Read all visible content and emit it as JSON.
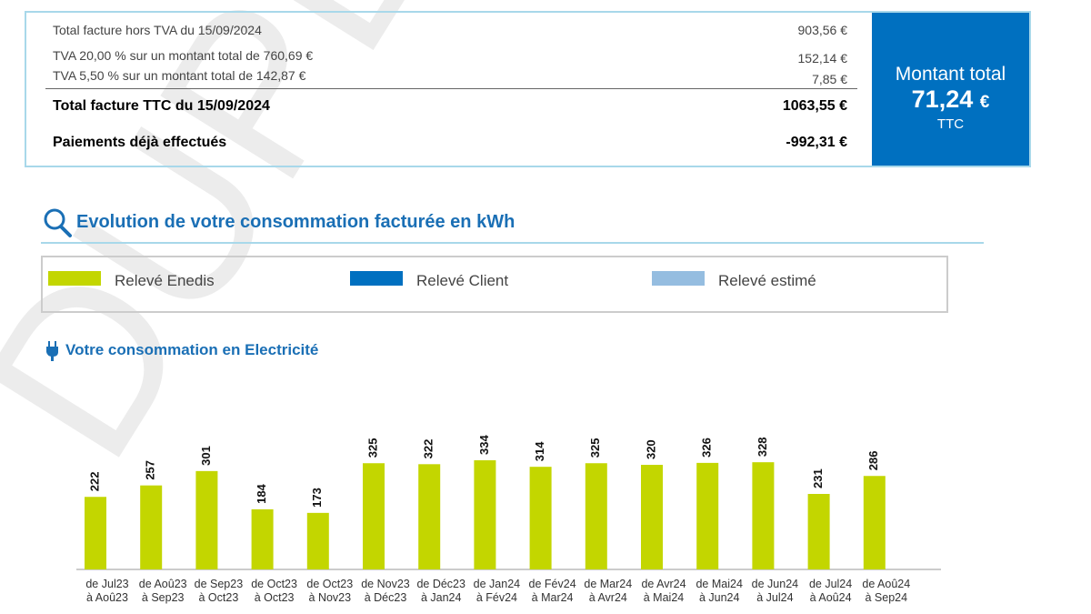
{
  "watermark": "DUPLICATA",
  "invoice": {
    "rows": [
      {
        "label": "Total facture hors TVA du 15/09/2024",
        "amount": "903,56 €"
      },
      {
        "label": "TVA 20,00 % sur un montant total de 760,69 €",
        "amount": "152,14 €"
      },
      {
        "label": "TVA 5,50 % sur un montant total de 142,87 €",
        "amount": "7,85 €"
      },
      {
        "label": "Total facture TTC du 15/09/2024",
        "amount": "1063,55 €"
      },
      {
        "label": "Paiements déjà effectués",
        "amount": "-992,31 €"
      }
    ],
    "total": {
      "title": "Montant total",
      "amount": "71,24",
      "currency": "€",
      "note": "TTC"
    }
  },
  "section_title": "Evolution de votre consommation facturée en kWh",
  "legend": [
    {
      "name": "Relevé Enedis",
      "color": "#c3d600"
    },
    {
      "name": "Relevé Client",
      "color": "#0070c0"
    },
    {
      "name": "Relevé estimé",
      "color": "#95bde0"
    }
  ],
  "chart_data": {
    "type": "bar",
    "title": "Votre consommation en Electricité",
    "color": "#c3d600",
    "categories": [
      [
        "de Jul23",
        "à Aoû23"
      ],
      [
        "de Aoû23",
        "à Sep23"
      ],
      [
        "de Sep23",
        "à Oct23"
      ],
      [
        "de Oct23",
        "à Oct23"
      ],
      [
        "de Oct23",
        "à Nov23"
      ],
      [
        "de Nov23",
        "à Déc23"
      ],
      [
        "de Déc23",
        "à Jan24"
      ],
      [
        "de Jan24",
        "à Fév24"
      ],
      [
        "de Fév24",
        "à Mar24"
      ],
      [
        "de Mar24",
        "à Avr24"
      ],
      [
        "de Avr24",
        "à Mai24"
      ],
      [
        "de Mai24",
        "à Jun24"
      ],
      [
        "de Jun24",
        "à Jul24"
      ],
      [
        "de Jul24",
        "à Aoû24"
      ],
      [
        "de Aoû24",
        "à Sep24"
      ]
    ],
    "values": [
      222,
      257,
      301,
      184,
      173,
      325,
      322,
      334,
      314,
      325,
      320,
      326,
      328,
      231,
      286
    ]
  }
}
